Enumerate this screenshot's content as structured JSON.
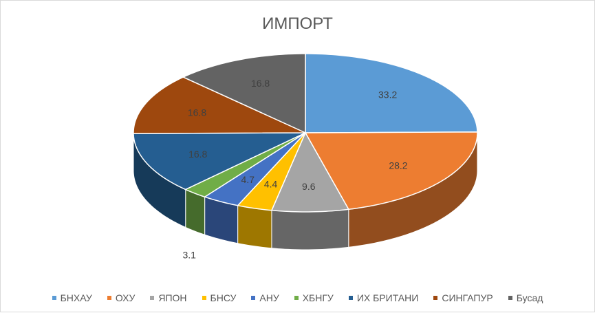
{
  "chart_data": {
    "type": "pie",
    "style": "3d",
    "title": "ИМПОРТ",
    "categories": [
      "БНХАУ",
      "ОХУ",
      "ЯПОН",
      "БНСУ",
      "АНУ",
      "ХБНГУ",
      "ИХ БРИТАНИ",
      "СИНГАПУР",
      "Бусад"
    ],
    "values": [
      33.2,
      28.2,
      9.6,
      4.4,
      4.7,
      3.1,
      16.8,
      16.8,
      16.8
    ],
    "colors": [
      "#5B9BD5",
      "#ED7D31",
      "#A5A5A5",
      "#FFC000",
      "#4472C4",
      "#70AD47",
      "#255E91",
      "#9E480E",
      "#636363"
    ],
    "legend_position": "bottom"
  }
}
